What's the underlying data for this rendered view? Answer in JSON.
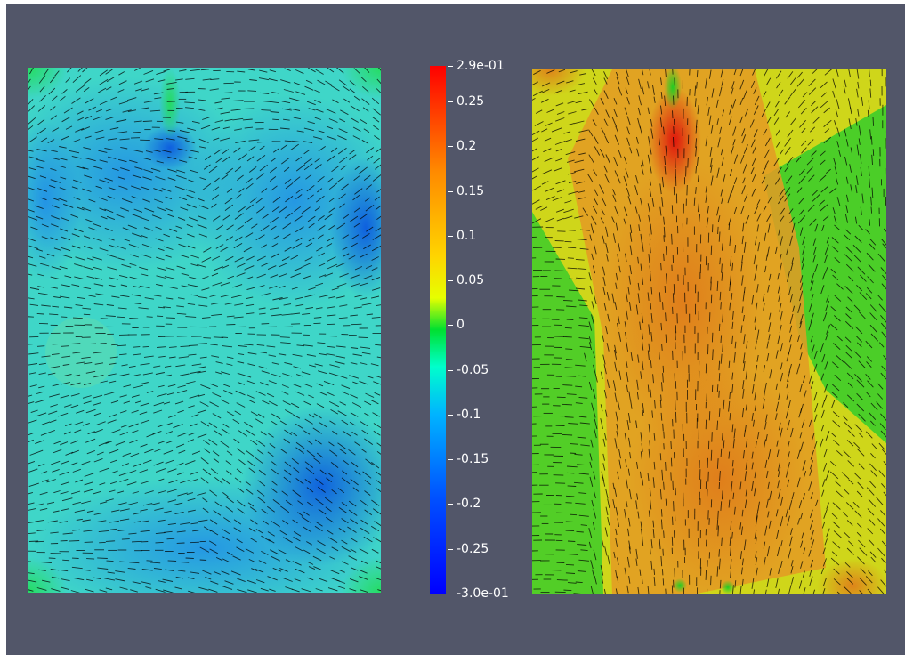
{
  "colorbar": {
    "labels": [
      {
        "text": "2.9e-01",
        "value": 0.29
      },
      {
        "text": "0.25",
        "value": 0.25
      },
      {
        "text": "0.2",
        "value": 0.2
      },
      {
        "text": "0.15",
        "value": 0.15
      },
      {
        "text": "0.1",
        "value": 0.1
      },
      {
        "text": "0.05",
        "value": 0.05
      },
      {
        "text": "0",
        "value": 0
      },
      {
        "text": "-0.05",
        "value": -0.05
      },
      {
        "text": "-0.1",
        "value": -0.1
      },
      {
        "text": "-0.15",
        "value": -0.15
      },
      {
        "text": "-0.2",
        "value": -0.2
      },
      {
        "text": "-0.25",
        "value": -0.25
      },
      {
        "text": "-3.0e-01",
        "value": -0.3
      }
    ],
    "range": [
      -0.3,
      0.29
    ],
    "colormap": [
      "#0000ff",
      "#0050ff",
      "#00b4ff",
      "#00ffcc",
      "#00e030",
      "#e6ff00",
      "#ffd400",
      "#ff8a00",
      "#ff0000"
    ]
  },
  "background_color": "#525669",
  "glyph_color": "#000000"
}
